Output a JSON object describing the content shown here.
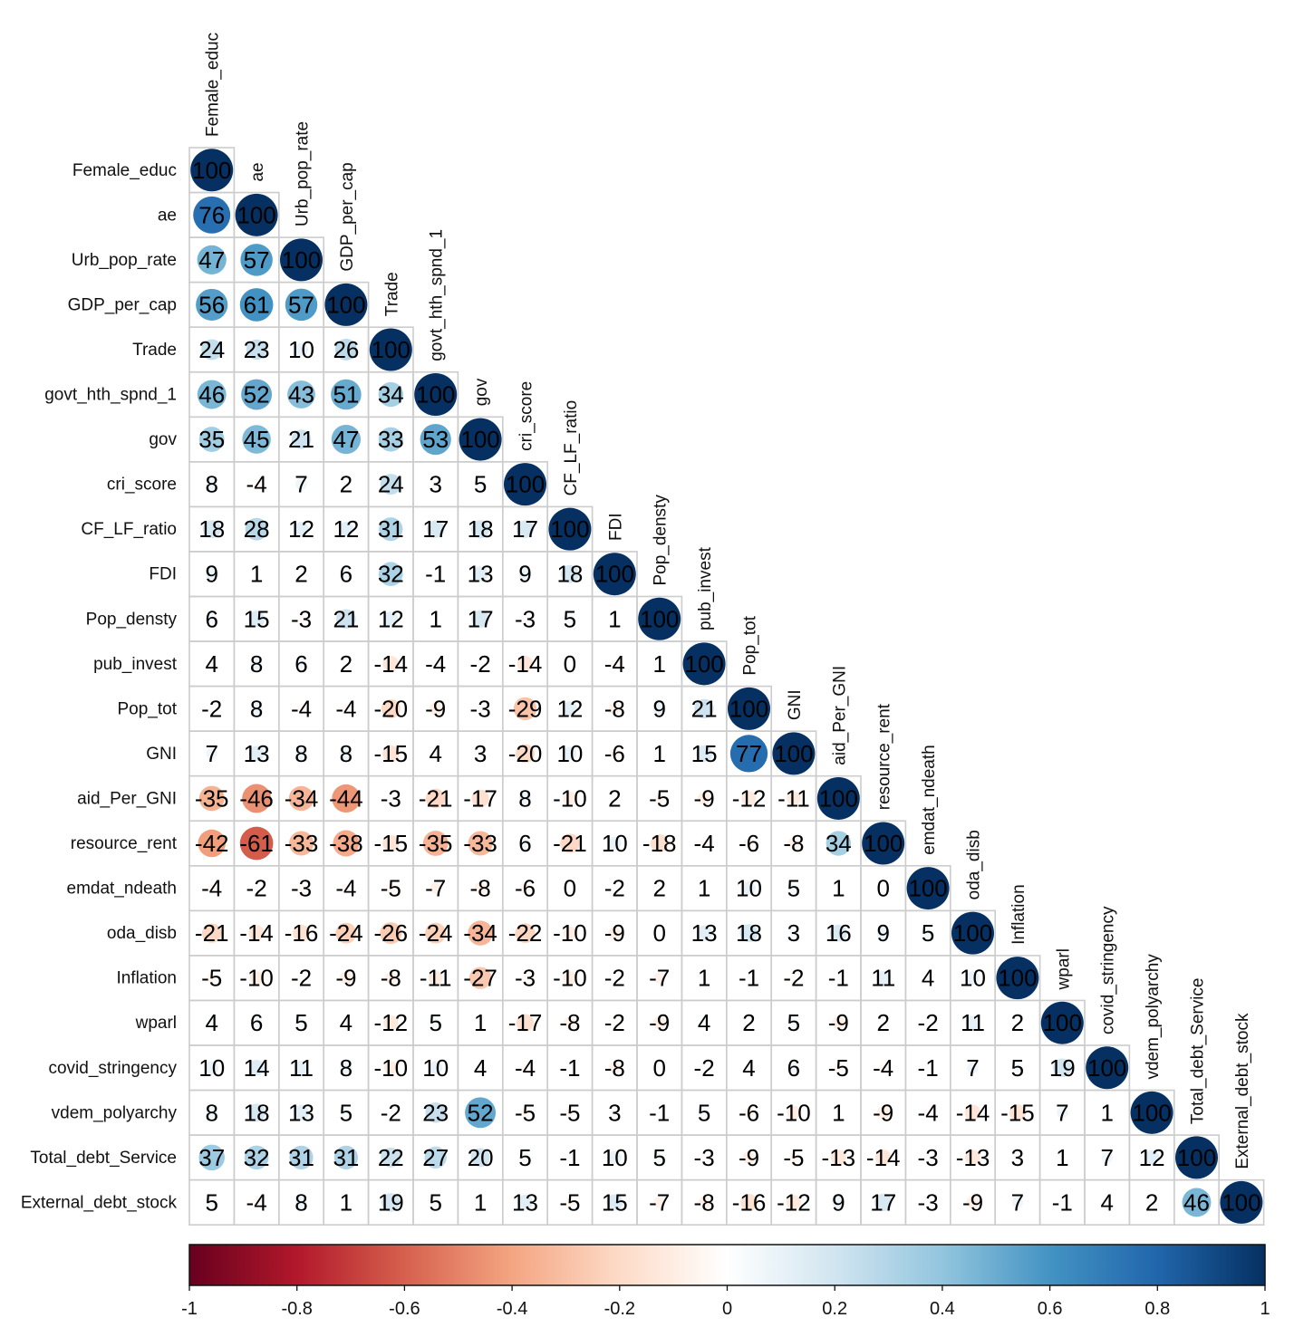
{
  "chart_data": {
    "type": "heatmap",
    "style": "lower-triangle correlation matrix, circle glyphs sized and colored by value, values printed x100",
    "variables": [
      "Female_educ",
      "ae",
      "Urb_pop_rate",
      "GDP_per_cap",
      "Trade",
      "govt_hth_spnd_1",
      "gov",
      "cri_score",
      "CF_LF_ratio",
      "FDI",
      "Pop_densty",
      "pub_invest",
      "Pop_tot",
      "GNI",
      "aid_Per_GNI",
      "resource_rent",
      "emdat_ndeath",
      "oda_disb",
      "Inflation",
      "wparl",
      "covid_stringency",
      "vdem_polyarchy",
      "Total_debt_Service",
      "External_debt_stock"
    ],
    "matrix": [
      [
        100
      ],
      [
        76,
        100
      ],
      [
        47,
        57,
        100
      ],
      [
        56,
        61,
        57,
        100
      ],
      [
        24,
        23,
        10,
        26,
        100
      ],
      [
        46,
        52,
        43,
        51,
        34,
        100
      ],
      [
        35,
        45,
        21,
        47,
        33,
        53,
        100
      ],
      [
        8,
        -4,
        7,
        2,
        24,
        3,
        5,
        100
      ],
      [
        18,
        28,
        12,
        12,
        31,
        17,
        18,
        17,
        100
      ],
      [
        9,
        1,
        2,
        6,
        32,
        -1,
        13,
        9,
        18,
        100
      ],
      [
        6,
        15,
        -3,
        21,
        12,
        1,
        17,
        -3,
        5,
        1,
        100
      ],
      [
        4,
        8,
        6,
        2,
        -14,
        -4,
        -2,
        -14,
        0,
        -4,
        1,
        100
      ],
      [
        -2,
        8,
        -4,
        -4,
        -20,
        -9,
        -3,
        -29,
        12,
        -8,
        9,
        21,
        100
      ],
      [
        7,
        13,
        8,
        8,
        -15,
        4,
        3,
        -20,
        10,
        -6,
        1,
        15,
        77,
        100
      ],
      [
        -35,
        -46,
        -34,
        -44,
        -3,
        -21,
        -17,
        8,
        -10,
        2,
        -5,
        -9,
        -12,
        -11,
        100
      ],
      [
        -42,
        -61,
        -33,
        -38,
        -15,
        -35,
        -33,
        6,
        -21,
        10,
        -18,
        -4,
        -6,
        -8,
        34,
        100
      ],
      [
        -4,
        -2,
        -3,
        -4,
        -5,
        -7,
        -8,
        -6,
        0,
        -2,
        2,
        1,
        10,
        5,
        1,
        0,
        100
      ],
      [
        -21,
        -14,
        -16,
        -24,
        -26,
        -24,
        -34,
        -22,
        -10,
        -9,
        0,
        13,
        18,
        3,
        16,
        9,
        5,
        100
      ],
      [
        -5,
        -10,
        -2,
        -9,
        -8,
        -11,
        -27,
        -3,
        -10,
        -2,
        -7,
        1,
        -1,
        -2,
        -1,
        11,
        4,
        10,
        100
      ],
      [
        4,
        6,
        5,
        4,
        -12,
        5,
        1,
        -17,
        -8,
        -2,
        -9,
        4,
        2,
        5,
        -9,
        2,
        -2,
        11,
        2,
        100
      ],
      [
        10,
        14,
        11,
        8,
        -10,
        10,
        4,
        -4,
        -1,
        -8,
        0,
        -2,
        4,
        6,
        -5,
        -4,
        -1,
        7,
        5,
        19,
        100
      ],
      [
        8,
        18,
        13,
        5,
        -2,
        23,
        52,
        -5,
        -5,
        3,
        -1,
        5,
        -6,
        -10,
        1,
        -9,
        -4,
        -14,
        -15,
        7,
        1,
        100
      ],
      [
        37,
        32,
        31,
        31,
        22,
        27,
        20,
        5,
        -1,
        10,
        5,
        -3,
        -9,
        -5,
        -13,
        -14,
        -3,
        -13,
        3,
        1,
        7,
        12,
        100
      ],
      [
        5,
        -4,
        8,
        1,
        19,
        5,
        1,
        13,
        -5,
        15,
        -7,
        -8,
        -16,
        -12,
        9,
        17,
        -3,
        -9,
        7,
        -1,
        4,
        2,
        46,
        100
      ]
    ],
    "color_scale": {
      "range": [
        -1,
        1
      ],
      "ticks": [
        "-1",
        "-0.8",
        "-0.6",
        "-0.4",
        "-0.2",
        "0",
        "0.2",
        "0.4",
        "0.6",
        "0.8",
        "1"
      ],
      "stops": [
        "#67001F",
        "#B2182B",
        "#D6604D",
        "#F4A582",
        "#FDDBC7",
        "#FFFFFF",
        "#D1E5F0",
        "#92C5DE",
        "#4393C3",
        "#2166AC",
        "#053061"
      ]
    },
    "legend_position": "bottom"
  }
}
